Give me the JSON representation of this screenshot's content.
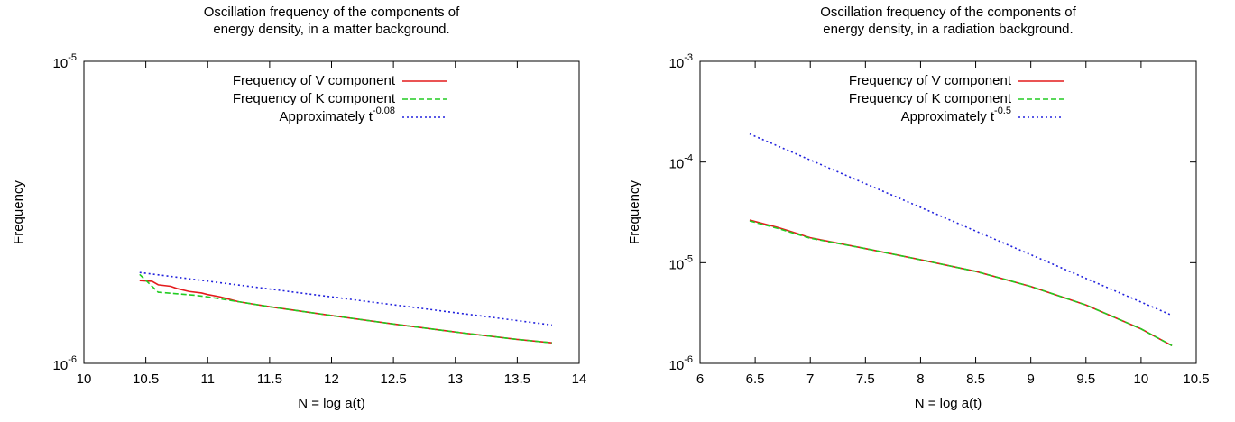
{
  "chart_data": [
    {
      "type": "line",
      "title": [
        "Oscillation frequency of the components of",
        "energy density, in a matter background."
      ],
      "xlabel": "N = log a(t)",
      "ylabel": "Frequency",
      "xlim": [
        10,
        14
      ],
      "xticks": [
        10,
        10.5,
        11,
        11.5,
        12,
        12.5,
        13,
        13.5,
        14
      ],
      "ylim": [
        1e-06,
        1e-05
      ],
      "ylog": true,
      "yticks": [
        {
          "value": 1e-06,
          "label": "10-6"
        },
        {
          "value": 1e-05,
          "label": "10-5"
        }
      ],
      "legend": "upper right",
      "series": [
        {
          "name": "Frequency of V component",
          "color": "#e41a1c",
          "dash": "solid",
          "x": [
            10.45,
            10.55,
            10.6,
            10.7,
            10.75,
            10.85,
            10.95,
            11,
            11.1,
            11.25,
            11.5,
            12,
            12.5,
            13,
            13.5,
            13.78
          ],
          "values": [
            1.88e-06,
            1.87e-06,
            1.82e-06,
            1.8e-06,
            1.77e-06,
            1.73e-06,
            1.71e-06,
            1.69e-06,
            1.66e-06,
            1.6e-06,
            1.54e-06,
            1.44e-06,
            1.35e-06,
            1.27e-06,
            1.2e-06,
            1.17e-06
          ]
        },
        {
          "name": "Frequency of K component",
          "color": "#22cc22",
          "dash": "dashed",
          "x": [
            10.45,
            10.55,
            10.6,
            10.75,
            10.9,
            11,
            11.25,
            11.5,
            12,
            12.5,
            13,
            13.5,
            13.78
          ],
          "values": [
            1.97e-06,
            1.8e-06,
            1.72e-06,
            1.7e-06,
            1.68e-06,
            1.66e-06,
            1.6e-06,
            1.54e-06,
            1.44e-06,
            1.35e-06,
            1.27e-06,
            1.2e-06,
            1.17e-06
          ]
        },
        {
          "name": "Approximately t-0.08",
          "color": "#2222dd",
          "dash": "dotted",
          "x": [
            10.45,
            13.78
          ],
          "values": [
            2e-06,
            1.34e-06
          ]
        }
      ]
    },
    {
      "type": "line",
      "title": [
        "Oscillation frequency of the components of",
        "energy density, in a radiation background."
      ],
      "xlabel": "N = log a(t)",
      "ylabel": "Frequency",
      "xlim": [
        6,
        10.5
      ],
      "xticks": [
        6,
        6.5,
        7,
        7.5,
        8,
        8.5,
        9,
        9.5,
        10,
        10.5
      ],
      "ylim": [
        1e-06,
        0.001
      ],
      "ylog": true,
      "yticks": [
        {
          "value": 1e-06,
          "label": "10-6"
        },
        {
          "value": 1e-05,
          "label": "10-5"
        },
        {
          "value": 0.0001,
          "label": "10-4"
        },
        {
          "value": 0.001,
          "label": "10-3"
        }
      ],
      "legend": "upper right",
      "series": [
        {
          "name": "Frequency of V component",
          "color": "#e41a1c",
          "dash": "solid",
          "x": [
            6.45,
            6.6,
            6.7,
            6.85,
            7,
            7.5,
            8,
            8.5,
            9,
            9.5,
            10,
            10.28
          ],
          "values": [
            2.65e-05,
            2.4e-05,
            2.25e-05,
            2e-05,
            1.77e-05,
            1.38e-05,
            1.07e-05,
            8.2e-06,
            5.8e-06,
            3.8e-06,
            2.2e-06,
            1.5e-06
          ]
        },
        {
          "name": "Frequency of K component",
          "color": "#22cc22",
          "dash": "dashed",
          "x": [
            6.45,
            6.7,
            7,
            7.5,
            8,
            8.5,
            9,
            9.5,
            10,
            10.28
          ],
          "values": [
            2.6e-05,
            2.2e-05,
            1.75e-05,
            1.38e-05,
            1.07e-05,
            8.2e-06,
            5.8e-06,
            3.8e-06,
            2.2e-06,
            1.5e-06
          ]
        },
        {
          "name": "Approximately t-0.5",
          "color": "#2222dd",
          "dash": "dotted",
          "x": [
            6.45,
            10.28
          ],
          "values": [
            0.00019,
            3e-06
          ]
        }
      ]
    }
  ]
}
